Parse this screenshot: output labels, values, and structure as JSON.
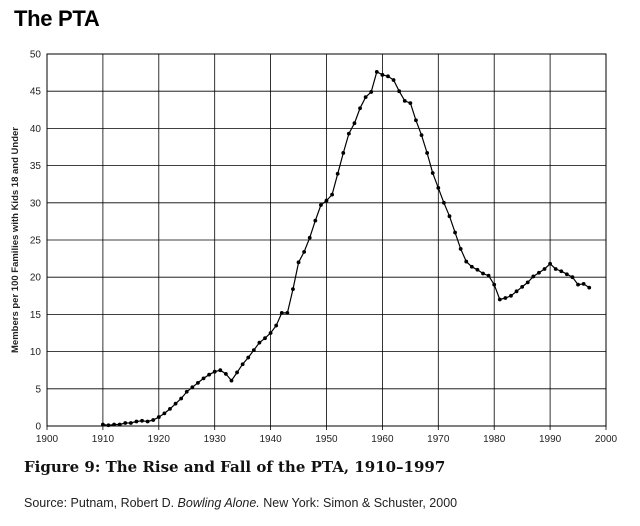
{
  "page": {
    "title": "The PTA",
    "caption": "Figure 9: The Rise and Fall of the PTA, 1910–1997",
    "source_prefix": "Source: Putnam, Robert D. ",
    "source_book": "Bowling Alone.",
    "source_suffix": " New York: Simon & Schuster, 2000"
  },
  "chart_data": {
    "type": "line",
    "ylabel": "Members per 100 Families with Kids 18 and Under",
    "xlabel": "",
    "xlim": [
      1900,
      2000
    ],
    "ylim": [
      0,
      50
    ],
    "xticks": [
      1900,
      1910,
      1920,
      1930,
      1940,
      1950,
      1960,
      1970,
      1980,
      1990,
      2000
    ],
    "yticks": [
      0,
      5,
      10,
      15,
      20,
      25,
      30,
      35,
      40,
      45,
      50
    ],
    "grid": true,
    "legend": "none",
    "line_color": "#000000",
    "series": [
      {
        "x": [
          1910,
          1911,
          1912,
          1913,
          1914,
          1915,
          1916,
          1917,
          1918,
          1919,
          1920,
          1921,
          1922,
          1923,
          1924,
          1925,
          1926,
          1927,
          1928,
          1929,
          1930,
          1931,
          1932,
          1933,
          1934,
          1935,
          1936,
          1937,
          1938,
          1939,
          1940,
          1941,
          1942,
          1943,
          1944,
          1945,
          1946,
          1947,
          1948,
          1949,
          1950,
          1951,
          1952,
          1953,
          1954,
          1955,
          1956,
          1957,
          1958,
          1959,
          1960,
          1961,
          1962,
          1963,
          1964,
          1965,
          1966,
          1967,
          1968,
          1969,
          1970,
          1971,
          1972,
          1973,
          1974,
          1975,
          1976,
          1977,
          1978,
          1979,
          1980,
          1981,
          1982,
          1983,
          1984,
          1985,
          1986,
          1987,
          1988,
          1989,
          1990,
          1991,
          1992,
          1993,
          1994,
          1995,
          1996,
          1997
        ],
        "y": [
          0.2,
          0.1,
          0.2,
          0.2,
          0.4,
          0.4,
          0.6,
          0.7,
          0.6,
          0.8,
          1.2,
          1.7,
          2.3,
          3.0,
          3.7,
          4.6,
          5.2,
          5.8,
          6.4,
          6.9,
          7.3,
          7.5,
          7.0,
          6.1,
          7.2,
          8.3,
          9.2,
          10.2,
          11.2,
          11.8,
          12.5,
          13.5,
          15.2,
          15.2,
          18.4,
          22.0,
          23.4,
          25.3,
          27.6,
          29.7,
          30.3,
          31.1,
          33.9,
          36.7,
          39.3,
          40.7,
          42.7,
          44.2,
          44.9,
          47.6,
          47.2,
          47.0,
          46.5,
          45.0,
          43.7,
          43.4,
          41.1,
          39.1,
          36.7,
          34.0,
          32.0,
          30.0,
          28.2,
          26.0,
          23.8,
          22.1,
          21.4,
          21.0,
          20.5,
          20.2,
          19.0,
          17.0,
          17.2,
          17.5,
          18.1,
          18.7,
          19.3,
          20.1,
          20.6,
          21.1,
          21.8,
          21.1,
          20.8,
          20.4,
          20.0,
          19.0,
          19.1,
          18.6
        ]
      }
    ]
  }
}
